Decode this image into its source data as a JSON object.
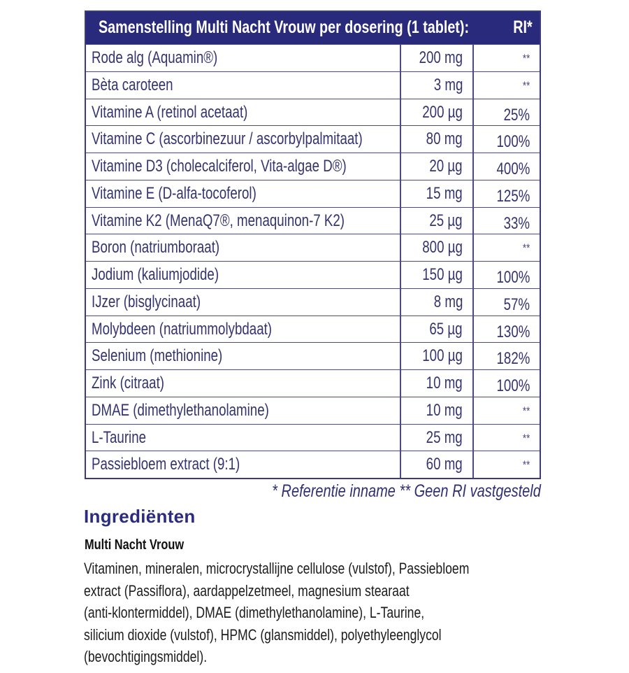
{
  "table": {
    "header_title": "Samenstelling Multi Nacht Vrouw per dosering (1 tablet):",
    "header_ri": "RI*",
    "rows": [
      {
        "name": "Rode alg (Aquamin®)",
        "amount": "200 mg",
        "ri": "**"
      },
      {
        "name": "Bèta caroteen",
        "amount": "3 mg",
        "ri": "**"
      },
      {
        "name": "Vitamine A (retinol acetaat)",
        "amount": "200 µg",
        "ri": "25%"
      },
      {
        "name": "Vitamine C (ascorbinezuur / ascorbylpalmitaat)",
        "amount": "80 mg",
        "ri": "100%"
      },
      {
        "name": "Vitamine D3 (cholecalciferol, Vita-algae D®)",
        "amount": "20 µg",
        "ri": "400%"
      },
      {
        "name": "Vitamine E (D-alfa-tocoferol)",
        "amount": "15 mg",
        "ri": "125%"
      },
      {
        "name": "Vitamine K2 (MenaQ7®, menaquinon-7 K2)",
        "amount": "25 µg",
        "ri": "33%"
      },
      {
        "name": "Boron (natriumboraat)",
        "amount": "800 µg",
        "ri": "**"
      },
      {
        "name": "Jodium (kaliumjodide)",
        "amount": "150 µg",
        "ri": "100%"
      },
      {
        "name": "IJzer (bisglycinaat)",
        "amount": "8 mg",
        "ri": "57%"
      },
      {
        "name": "Molybdeen (natriummolybdaat)",
        "amount": "65 µg",
        "ri": "130%"
      },
      {
        "name": "Selenium (methionine)",
        "amount": "100 µg",
        "ri": "182%"
      },
      {
        "name": "Zink (citraat)",
        "amount": "10 mg",
        "ri": "100%"
      },
      {
        "name": "DMAE (dimethylethanolamine)",
        "amount": "10 mg",
        "ri": "**"
      },
      {
        "name": "L-Taurine",
        "amount": "25 mg",
        "ri": "**"
      },
      {
        "name": "Passiebloem extract (9:1)",
        "amount": "60 mg",
        "ri": "**"
      }
    ]
  },
  "footnote": "* Referentie inname  ** Geen RI vastgesteld",
  "ingredients": {
    "title": "Ingrediënten",
    "product": "Multi Nacht Vrouw",
    "lines": [
      "Vitaminen, mineralen, microcrystallijne cellulose (vulstof), Passiebloem",
      "extract (Passiflora), aardappelzetmeel, magnesium stearaat",
      "(anti-klontermiddel), DMAE (dimethylethanolamine), L-Taurine,",
      "silicium dioxide (vulstof), HPMC (glansmiddel), polyethyleenglycol",
      "(bevochtigingsmiddel)."
    ]
  },
  "colors": {
    "header_bg": "#2a2a7c",
    "table_text": "#34346f",
    "heading": "#2b2b80",
    "body_text": "#1c1c1c"
  }
}
